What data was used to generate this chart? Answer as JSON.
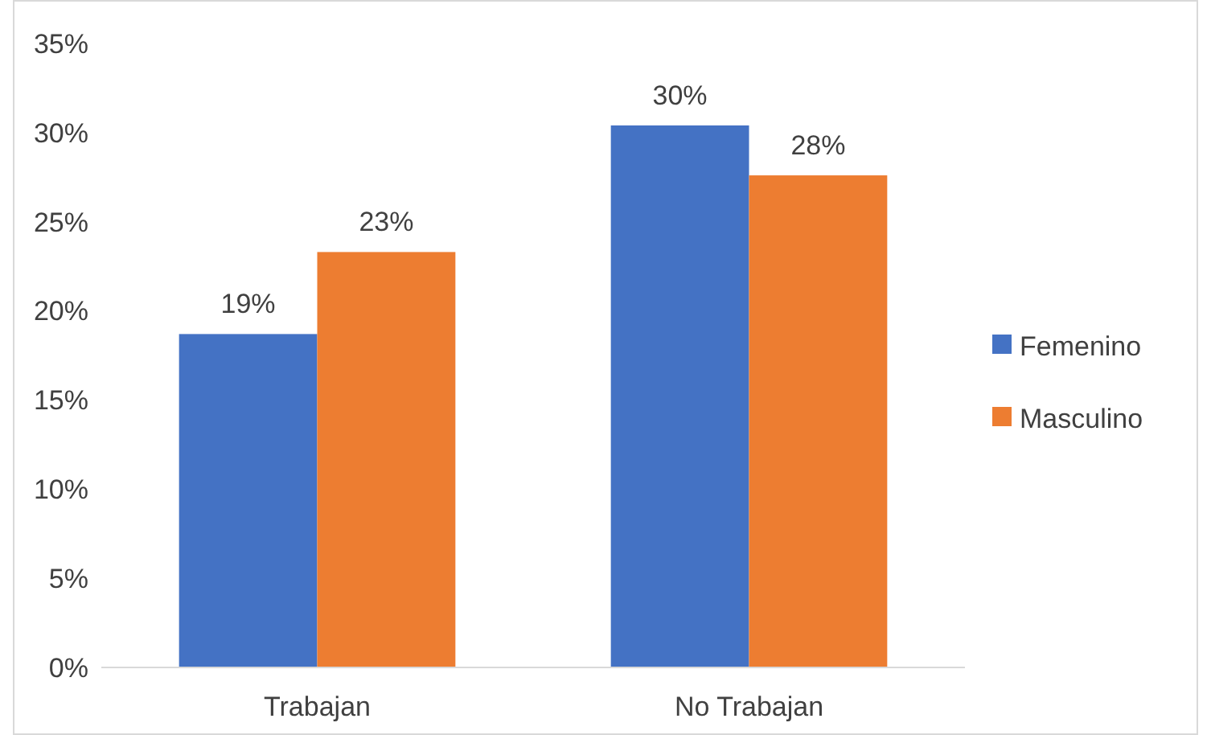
{
  "chart_data": {
    "type": "bar",
    "categories": [
      "Trabajan",
      "No Trabajan"
    ],
    "series": [
      {
        "name": "Femenino",
        "color": "#4472c4",
        "values": [
          18.7,
          30.4
        ],
        "value_labels": [
          "19%",
          "30%"
        ]
      },
      {
        "name": "Masculino",
        "color": "#ed7d31",
        "values": [
          23.3,
          27.6
        ],
        "value_labels": [
          "23%",
          "28%"
        ]
      }
    ],
    "ylim": [
      0,
      35
    ],
    "yticks": [
      {
        "value": 0,
        "label": "0%"
      },
      {
        "value": 5,
        "label": "5%"
      },
      {
        "value": 10,
        "label": "10%"
      },
      {
        "value": 15,
        "label": "15%"
      },
      {
        "value": 20,
        "label": "20%"
      },
      {
        "value": 25,
        "label": "25%"
      },
      {
        "value": 30,
        "label": "30%"
      },
      {
        "value": 35,
        "label": "35%"
      }
    ],
    "legend": "right"
  }
}
